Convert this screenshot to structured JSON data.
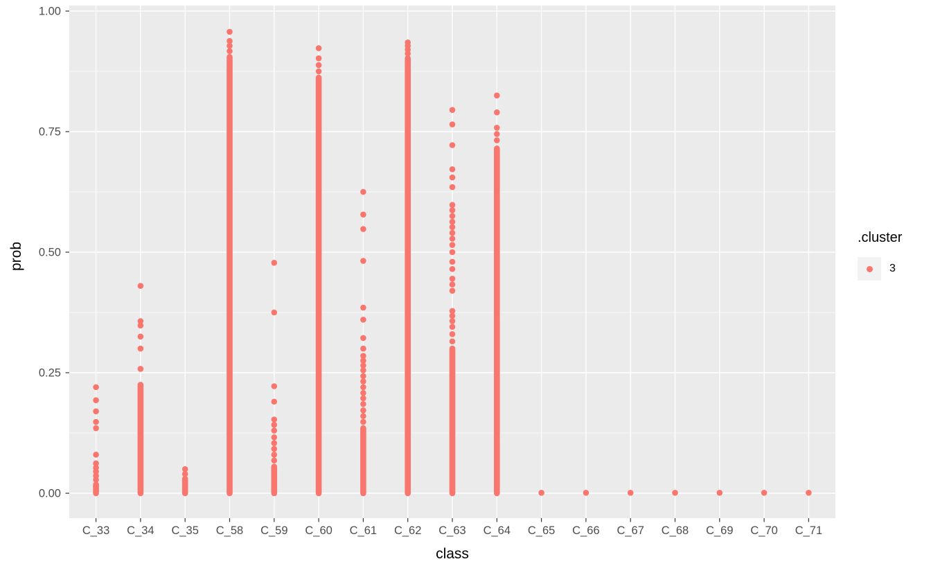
{
  "figure": {
    "background": "#FFFFFF"
  },
  "panel": {
    "background": "#EBEBEB",
    "grid_color": "#FFFFFF",
    "tick_color": "#333333",
    "tick_label_color": "#4D4D4D",
    "axis_title_color": "#000000"
  },
  "chart_data": {
    "type": "scatter",
    "title": "",
    "xlabel": "class",
    "ylabel": "prob",
    "ylim": [
      0,
      1
    ],
    "yticks": [
      0,
      0.25,
      0.5,
      0.75,
      1
    ],
    "ytick_labels": [
      "0.00",
      "0.25",
      "0.50",
      "0.75",
      "1.00"
    ],
    "yminor": [
      0.125,
      0.375,
      0.625,
      0.875
    ],
    "grid": true,
    "legend": {
      "title": ".cluster",
      "position": "right",
      "key_fill": "#F2F2F2",
      "entries": [
        {
          "label": "3",
          "color": "#F8766D"
        }
      ]
    },
    "categories": [
      "C_33",
      "C_34",
      "C_35",
      "C_58",
      "C_59",
      "C_60",
      "C_61",
      "C_62",
      "C_63",
      "C_64",
      "C_65",
      "C_66",
      "C_67",
      "C_68",
      "C_69",
      "C_70",
      "C_71"
    ],
    "series": [
      {
        "name": "3",
        "color": "#F8766D",
        "point_radius": 4.3,
        "by_category": [
          {
            "category": "C_33",
            "dense_ranges": [
              [
                0,
                0.018
              ]
            ],
            "points": [
              0.028,
              0.036,
              0.045,
              0.053,
              0.062,
              0.08,
              0.135,
              0.148,
              0.17,
              0.193,
              0.22
            ]
          },
          {
            "category": "C_34",
            "dense_ranges": [
              [
                0,
                0.225
              ]
            ],
            "points": [
              0.258,
              0.3,
              0.325,
              0.348,
              0.357,
              0.43
            ]
          },
          {
            "category": "C_35",
            "dense_ranges": [
              [
                0,
                0.03
              ]
            ],
            "points": [
              0.04,
              0.05
            ]
          },
          {
            "category": "C_58",
            "dense_ranges": [
              [
                0,
                0.905
              ]
            ],
            "points": [
              0.917,
              0.928,
              0.938,
              0.957
            ]
          },
          {
            "category": "C_59",
            "dense_ranges": [
              [
                0,
                0.055
              ]
            ],
            "points": [
              0.068,
              0.08,
              0.092,
              0.104,
              0.116,
              0.13,
              0.142,
              0.153,
              0.19,
              0.222,
              0.375,
              0.478
            ]
          },
          {
            "category": "C_60",
            "dense_ranges": [
              [
                0,
                0.862
              ]
            ],
            "points": [
              0.875,
              0.888,
              0.902,
              0.923
            ]
          },
          {
            "category": "C_61",
            "dense_ranges": [
              [
                0,
                0.135
              ]
            ],
            "points": [
              0.148,
              0.16,
              0.172,
              0.185,
              0.197,
              0.208,
              0.22,
              0.232,
              0.243,
              0.255,
              0.265,
              0.275,
              0.285,
              0.3,
              0.322,
              0.36,
              0.385,
              0.482,
              0.548,
              0.578,
              0.625
            ]
          },
          {
            "category": "C_62",
            "dense_ranges": [
              [
                0,
                0.902
              ]
            ],
            "points": [
              0.912,
              0.92,
              0.928,
              0.935
            ]
          },
          {
            "category": "C_63",
            "dense_ranges": [
              [
                0,
                0.3
              ]
            ],
            "points": [
              0.315,
              0.33,
              0.345,
              0.357,
              0.368,
              0.378,
              0.42,
              0.433,
              0.445,
              0.465,
              0.48,
              0.5,
              0.515,
              0.528,
              0.54,
              0.552,
              0.563,
              0.575,
              0.587,
              0.598,
              0.635,
              0.655,
              0.672,
              0.722,
              0.765,
              0.795
            ]
          },
          {
            "category": "C_64",
            "dense_ranges": [
              [
                0,
                0.715
              ]
            ],
            "points": [
              0.732,
              0.745,
              0.758,
              0.79,
              0.825
            ]
          },
          {
            "category": "C_65",
            "dense_ranges": [],
            "points": [
              0.001
            ]
          },
          {
            "category": "C_66",
            "dense_ranges": [],
            "points": [
              0.001
            ]
          },
          {
            "category": "C_67",
            "dense_ranges": [],
            "points": [
              0.001
            ]
          },
          {
            "category": "C_68",
            "dense_ranges": [],
            "points": [
              0.001
            ]
          },
          {
            "category": "C_69",
            "dense_ranges": [],
            "points": [
              0.001
            ]
          },
          {
            "category": "C_70",
            "dense_ranges": [],
            "points": [
              0.001
            ]
          },
          {
            "category": "C_71",
            "dense_ranges": [],
            "points": [
              0.001
            ]
          }
        ]
      }
    ]
  }
}
